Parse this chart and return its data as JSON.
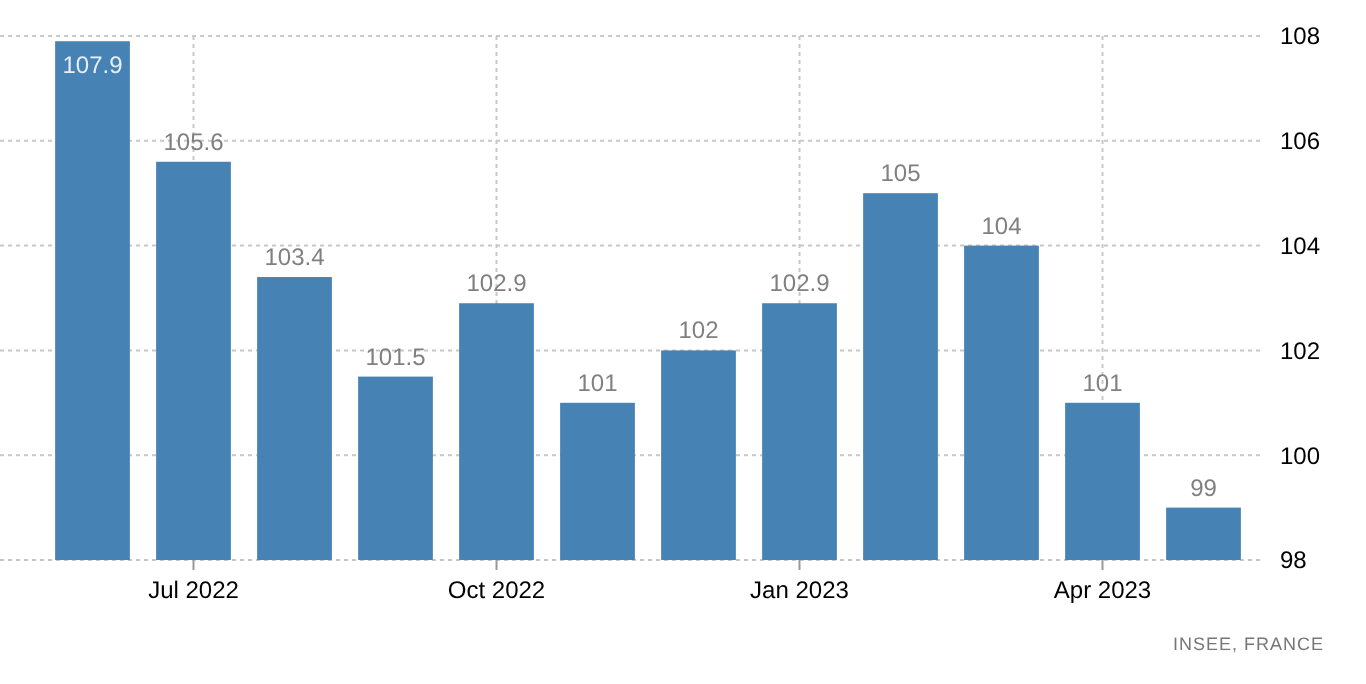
{
  "chart_data": {
    "type": "bar",
    "categories": [
      null,
      "Jul 2022",
      null,
      null,
      "Oct 2022",
      null,
      null,
      "Jan 2023",
      null,
      null,
      "Apr 2023",
      null
    ],
    "values": [
      107.9,
      105.6,
      103.4,
      101.5,
      102.9,
      101,
      102,
      102.9,
      105,
      104,
      101,
      99
    ],
    "color": "#4682b4",
    "ylim": [
      98,
      108
    ],
    "yticks": [
      98,
      100,
      102,
      104,
      106,
      108
    ],
    "grid": true,
    "data_labels": true,
    "annotations": [
      "INSEE, FRANCE"
    ]
  }
}
